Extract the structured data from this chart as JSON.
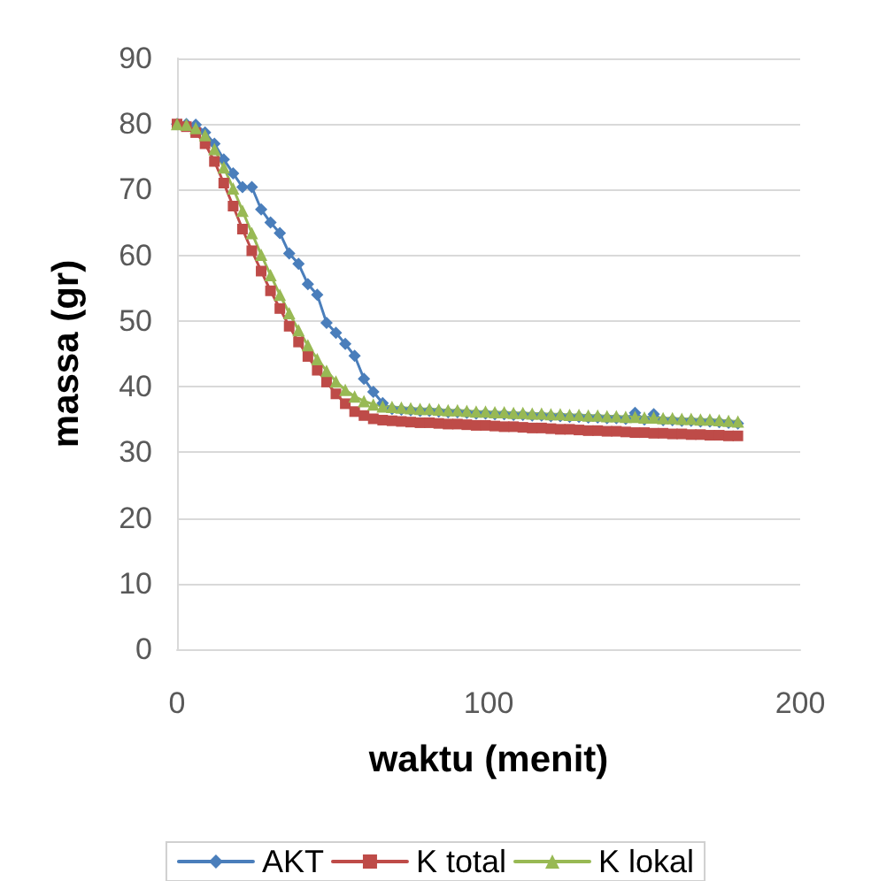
{
  "chart_data": {
    "type": "line",
    "xlabel": "waktu (menit)",
    "ylabel": "massa (gr)",
    "x": [
      0,
      3,
      6,
      9,
      12,
      15,
      18,
      21,
      24,
      27,
      30,
      33,
      36,
      39,
      42,
      45,
      48,
      51,
      54,
      57,
      60,
      63,
      66,
      69,
      72,
      75,
      78,
      81,
      84,
      87,
      90,
      93,
      96,
      99,
      102,
      105,
      108,
      111,
      114,
      117,
      120,
      123,
      126,
      129,
      132,
      135,
      138,
      141,
      144,
      147,
      150,
      153,
      156,
      159,
      162,
      165,
      168,
      171,
      174,
      177,
      180
    ],
    "series": [
      {
        "name": "AKT",
        "color": "#4a7ebb",
        "marker": "diamond",
        "values": [
          80,
          80,
          79.9,
          78.7,
          77,
          74.6,
          72.5,
          70.4,
          70.4,
          67,
          65,
          63.4,
          60.3,
          58.7,
          55.6,
          54,
          49.7,
          48.2,
          46.5,
          44.7,
          41.2,
          39.2,
          37.5,
          36.6,
          36.5,
          36.4,
          36.3,
          36.3,
          36.2,
          36.1,
          36.1,
          36.0,
          35.9,
          35.9,
          35.8,
          35.8,
          35.7,
          35.7,
          35.6,
          35.6,
          35.5,
          35.5,
          35.4,
          35.4,
          35.3,
          35.3,
          35.2,
          35.2,
          35.1,
          36.0,
          35.0,
          35.8,
          34.9,
          34.9,
          34.8,
          34.8,
          34.7,
          34.7,
          34.6,
          34.5,
          34.4
        ]
      },
      {
        "name": "K total",
        "color": "#be4b48",
        "marker": "square",
        "values": [
          80,
          79.6,
          78.7,
          77,
          74.3,
          71,
          67.5,
          64,
          60.7,
          57.6,
          54.6,
          51.9,
          49.2,
          46.8,
          44.6,
          42.5,
          40.7,
          38.9,
          37.4,
          36.2,
          35.6,
          35.1,
          34.9,
          34.8,
          34.7,
          34.6,
          34.5,
          34.5,
          34.4,
          34.3,
          34.3,
          34.2,
          34.1,
          34.1,
          34.0,
          33.9,
          33.9,
          33.8,
          33.7,
          33.7,
          33.6,
          33.5,
          33.5,
          33.4,
          33.3,
          33.3,
          33.2,
          33.2,
          33.1,
          33.0,
          33.0,
          32.9,
          32.9,
          32.8,
          32.8,
          32.7,
          32.7,
          32.6,
          32.6,
          32.5,
          32.5
        ]
      },
      {
        "name": "K lokal",
        "color": "#98b954",
        "marker": "triangle",
        "values": [
          80,
          79.9,
          79.4,
          78.3,
          76.2,
          73.4,
          70.2,
          66.8,
          63.4,
          60.1,
          57.0,
          54.0,
          51.2,
          48.6,
          46.3,
          44.2,
          42.4,
          40.8,
          39.5,
          38.5,
          37.8,
          37.3,
          37.0,
          36.9,
          36.8,
          36.7,
          36.6,
          36.6,
          36.5,
          36.4,
          36.4,
          36.3,
          36.2,
          36.2,
          36.1,
          36.1,
          36.0,
          36.0,
          35.9,
          35.9,
          35.8,
          35.8,
          35.7,
          35.7,
          35.6,
          35.6,
          35.5,
          35.5,
          35.4,
          35.4,
          35.3,
          35.3,
          35.2,
          35.2,
          35.1,
          35.1,
          35.0,
          35.0,
          34.9,
          34.8,
          34.7
        ]
      }
    ],
    "xlim": [
      0,
      200
    ],
    "xticks": [
      0,
      100,
      200
    ],
    "ylim": [
      0,
      90
    ],
    "yticks": [
      0,
      10,
      20,
      30,
      40,
      50,
      60,
      70,
      80,
      90
    ],
    "grid": "y",
    "legend": "bottom",
    "line_style": "solid"
  }
}
